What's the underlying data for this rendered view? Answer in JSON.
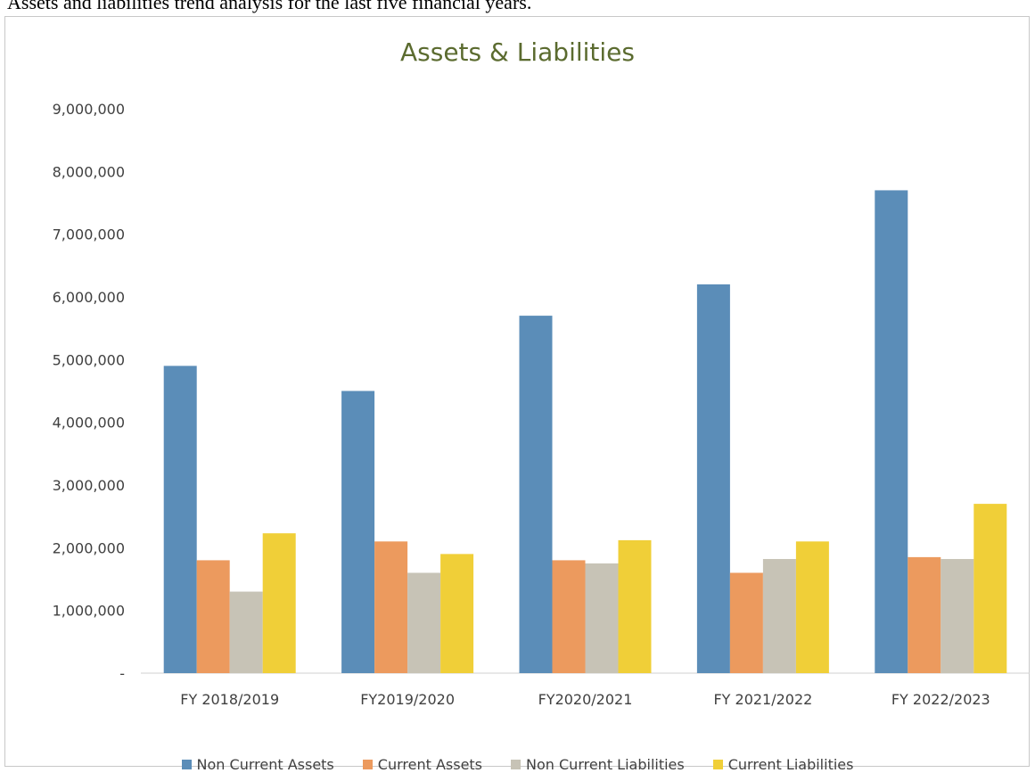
{
  "caption": "Assets and liabilities trend analysis for the last five financial years.",
  "chart_data": {
    "type": "bar",
    "title": "Assets & Liabilities",
    "categories": [
      "FY 2018/2019",
      "FY2019/2020",
      "FY2020/2021",
      "FY 2021/2022",
      "FY 2022/2023"
    ],
    "series": [
      {
        "name": "Non Current Assets",
        "color": "#5b8db8",
        "values": [
          4900000,
          4500000,
          5700000,
          6200000,
          7700000
        ]
      },
      {
        "name": "Current Assets",
        "color": "#ec9a5e",
        "values": [
          1800000,
          2100000,
          1800000,
          1600000,
          1850000
        ]
      },
      {
        "name": "Non Current Liabilities",
        "color": "#c7c3b6",
        "values": [
          1300000,
          1600000,
          1750000,
          1820000,
          1820000
        ]
      },
      {
        "name": "Current Liabilities",
        "color": "#f0cf38",
        "values": [
          2230000,
          1900000,
          2120000,
          2100000,
          2700000
        ]
      }
    ],
    "yticks": [
      "-",
      "1,000,000",
      "2,000,000",
      "3,000,000",
      "4,000,000",
      "5,000,000",
      "6,000,000",
      "7,000,000",
      "8,000,000",
      "9,000,000"
    ],
    "ylim": [
      0,
      9000000
    ],
    "legend_position": "bottom",
    "grid": false
  }
}
